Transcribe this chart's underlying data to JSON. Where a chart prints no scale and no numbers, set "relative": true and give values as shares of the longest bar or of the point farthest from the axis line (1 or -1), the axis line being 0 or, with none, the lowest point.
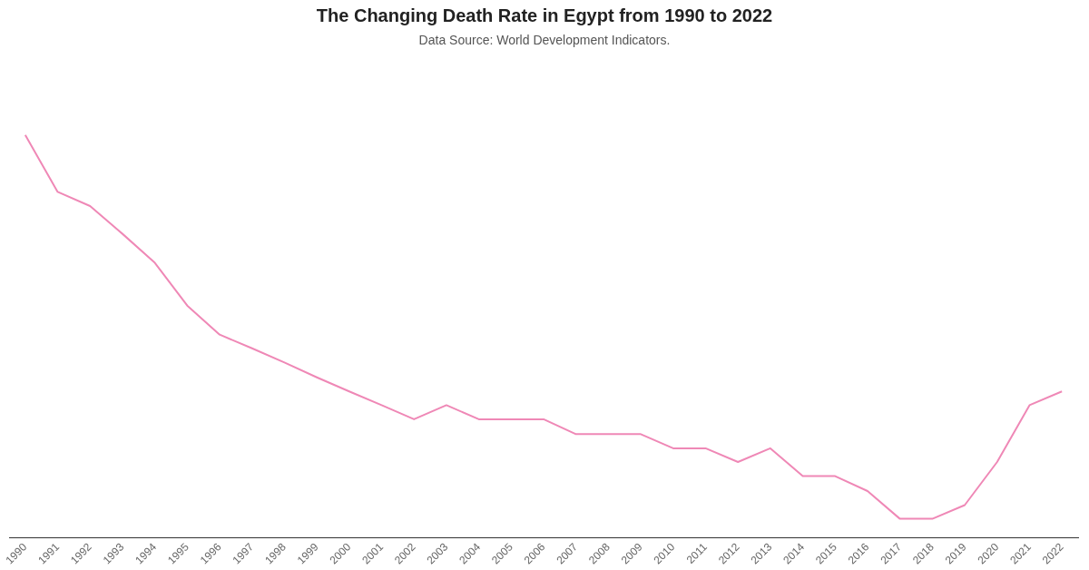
{
  "chart_data": {
    "type": "line",
    "title": "The Changing Death Rate in Egypt from 1990 to 2022",
    "subtitle": "Data Source: World Development Indicators.",
    "relative": true,
    "grid": false,
    "legend": false,
    "marker": "none",
    "line_style": "solid",
    "categories": [
      "1990",
      "1991",
      "1992",
      "1993",
      "1994",
      "1995",
      "1996",
      "1997",
      "1998",
      "1999",
      "2000",
      "2001",
      "2002",
      "2003",
      "2004",
      "2005",
      "2006",
      "2007",
      "2008",
      "2009",
      "2010",
      "2011",
      "2012",
      "2013",
      "2014",
      "2015",
      "2016",
      "2017",
      "2018",
      "2019",
      "2020",
      "2021",
      "2022"
    ],
    "series": [
      {
        "color": "#ef88b6",
        "values": [
          1,
          0.859,
          0.824,
          0.755,
          0.683,
          0.577,
          0.505,
          0.471,
          0.436,
          0.399,
          0.364,
          0.33,
          0.295,
          0.33,
          0.295,
          0.295,
          0.295,
          0.258,
          0.258,
          0.258,
          0.223,
          0.223,
          0.189,
          0.223,
          0.154,
          0.154,
          0.117,
          0.048,
          0.048,
          0.082,
          0.189,
          0.33,
          0.364
        ]
      }
    ]
  }
}
